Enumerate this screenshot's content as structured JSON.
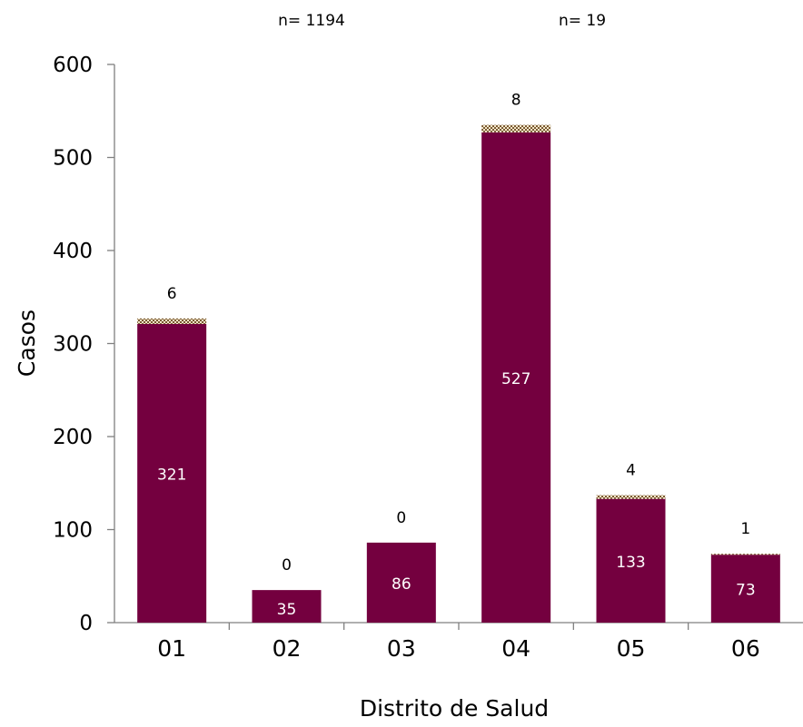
{
  "chart_data": {
    "type": "bar",
    "stacked": true,
    "categories": [
      "01",
      "02",
      "03",
      "04",
      "05",
      "06"
    ],
    "series": [
      {
        "values": [
          321,
          35,
          86,
          527,
          133,
          73
        ],
        "color": "#74003F",
        "pattern": "solid"
      },
      {
        "values": [
          6,
          0,
          0,
          8,
          4,
          1
        ],
        "color": "#8B6B3D",
        "pattern": "checkered"
      }
    ],
    "annotations": [
      "n= 1194",
      "n= 19"
    ],
    "xlabel": "Distrito de Salud",
    "ylabel": "Casos",
    "ylim": [
      0,
      600
    ],
    "yticks": [
      0,
      100,
      200,
      300,
      400,
      500,
      600
    ],
    "grid": false,
    "legend": "none"
  }
}
